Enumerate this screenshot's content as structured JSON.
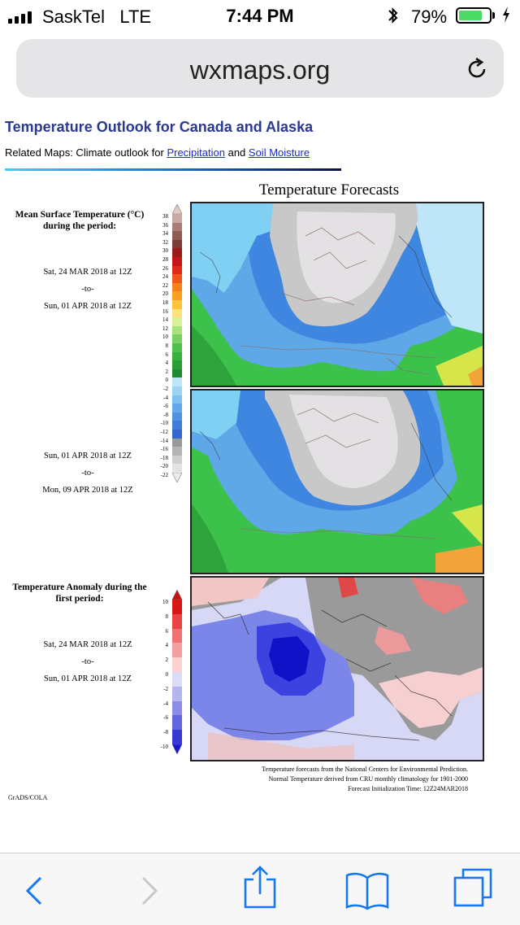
{
  "status_bar": {
    "carrier": "SaskTel",
    "network": "LTE",
    "time": "7:44 PM",
    "bluetooth_icon": "bluetooth-icon",
    "battery_percent": "79%",
    "battery_level": 0.79,
    "battery_color": "#4cd964"
  },
  "browser": {
    "url": "wxmaps.org",
    "reload_icon": "reload-icon"
  },
  "page": {
    "title": "Temperature Outlook for Canada and Alaska",
    "related_prefix": "Related Maps: Climate outlook for ",
    "related_link_1": "Precipitation",
    "related_and": " and ",
    "related_link_2": "Soil Moisture",
    "figure_title": "Temperature Forecasts",
    "panel1_label": "Mean Surface Temperature (°C) during the period:",
    "period1": {
      "start": "Sat, 24 MAR 2018 at 12Z",
      "sep": "-to-",
      "end": "Sun, 01 APR 2018 at 12Z"
    },
    "period2": {
      "start": "Sun, 01 APR 2018 at 12Z",
      "sep": "-to-",
      "end": "Mon, 09 APR 2018 at 12Z"
    },
    "anomaly_label": "Temperature Anomaly during the first period:",
    "period3": {
      "start": "Sat, 24 MAR 2018 at 12Z",
      "sep": "-to-",
      "end": "Sun, 01 APR 2018 at 12Z"
    },
    "temp_scale_ticks": [
      "38",
      "36",
      "34",
      "32",
      "30",
      "28",
      "26",
      "24",
      "22",
      "20",
      "18",
      "16",
      "14",
      "12",
      "10",
      "8",
      "6",
      "4",
      "2",
      "0",
      "-2",
      "-4",
      "-6",
      "-8",
      "-10",
      "-12",
      "-14",
      "-16",
      "-18",
      "-20",
      "-22"
    ],
    "anomaly_scale_ticks": [
      "10",
      "8",
      "6",
      "4",
      "2",
      "0",
      "-2",
      "-4",
      "-6",
      "-8",
      "-10"
    ],
    "footnote_1": "Temperature forecasts from the National Centers for Environmental Prediction.",
    "footnote_2": "Normal Temperature derived from CRU monthly climatology for 1901-2000",
    "footnote_3": "Forecast Initialization Time: 12Z24MAR2018",
    "credit": "GrADS/COLA"
  },
  "toolbar": {
    "back_icon": "back-icon",
    "forward_icon": "forward-icon",
    "share_icon": "share-icon",
    "bookmarks_icon": "bookmarks-icon",
    "tabs_icon": "tabs-icon"
  }
}
